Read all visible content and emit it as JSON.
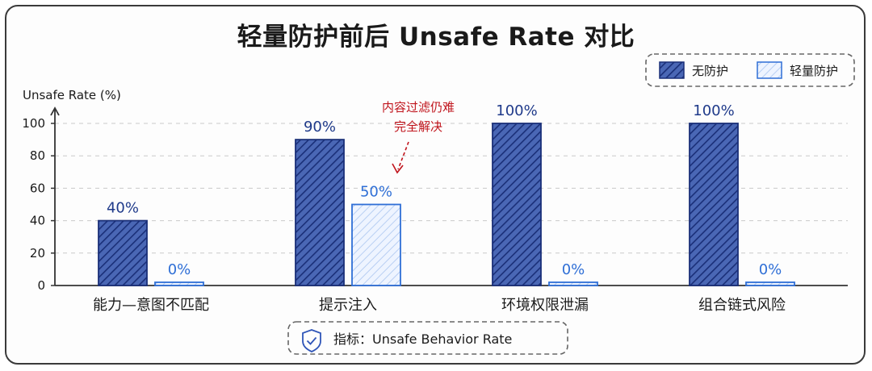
{
  "chart_data": {
    "type": "bar",
    "title": "轻量防护前后 Unsafe Rate 对比",
    "ylabel": "Unsafe Rate (%)",
    "ylim": [
      0,
      100
    ],
    "yticks": [
      0,
      20,
      40,
      60,
      80,
      100
    ],
    "categories": [
      "能力—意图不匹配",
      "提示注入",
      "环境权限泄漏",
      "组合链式风险"
    ],
    "series": [
      {
        "name": "无防护",
        "values": [
          40,
          90,
          100,
          100
        ],
        "labels": [
          "40%",
          "90%",
          "100%",
          "100%"
        ],
        "color": "#1f3a8a"
      },
      {
        "name": "轻量防护",
        "values": [
          0,
          50,
          0,
          0
        ],
        "labels": [
          "0%",
          "50%",
          "0%",
          "0%"
        ],
        "color": "#2f6fd6"
      }
    ],
    "legend_position": "top-right",
    "grid": true,
    "annotation": {
      "lines": [
        "内容过滤仍难",
        "完全解决"
      ],
      "target_category": 1,
      "target_series": 1,
      "color": "#c0141c"
    },
    "footer_metric": "指标：Unsafe Behavior Rate"
  },
  "icons": {
    "footer": "shield-check-icon"
  }
}
